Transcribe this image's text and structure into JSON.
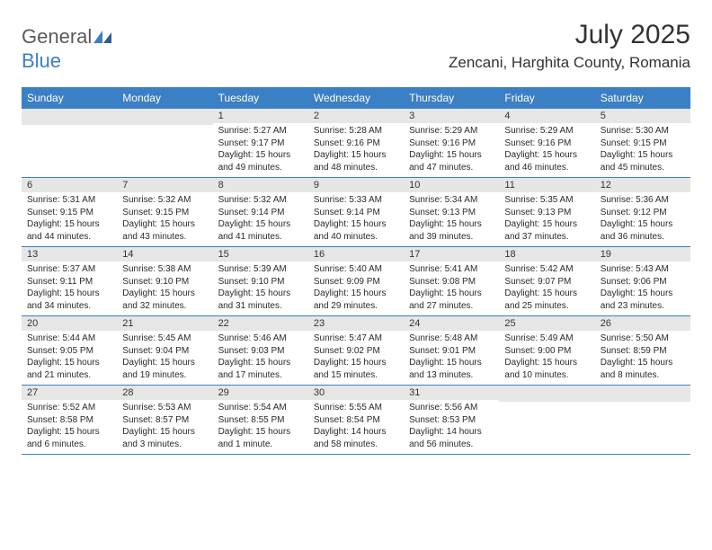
{
  "logo": {
    "general": "General",
    "blue": "Blue"
  },
  "title": "July 2025",
  "location": "Zencani, Harghita County, Romania",
  "day_headers": [
    "Sunday",
    "Monday",
    "Tuesday",
    "Wednesday",
    "Thursday",
    "Friday",
    "Saturday"
  ],
  "colors": {
    "header_bg": "#3b7fc4",
    "header_text": "#ffffff",
    "num_bar_bg": "#e6e6e6",
    "border": "#3b7fc4",
    "body_text": "#2a2a2a"
  },
  "weeks": [
    [
      {
        "num": "",
        "sunrise": "",
        "sunset": "",
        "daylight": ""
      },
      {
        "num": "",
        "sunrise": "",
        "sunset": "",
        "daylight": ""
      },
      {
        "num": "1",
        "sunrise": "Sunrise: 5:27 AM",
        "sunset": "Sunset: 9:17 PM",
        "daylight": "Daylight: 15 hours and 49 minutes."
      },
      {
        "num": "2",
        "sunrise": "Sunrise: 5:28 AM",
        "sunset": "Sunset: 9:16 PM",
        "daylight": "Daylight: 15 hours and 48 minutes."
      },
      {
        "num": "3",
        "sunrise": "Sunrise: 5:29 AM",
        "sunset": "Sunset: 9:16 PM",
        "daylight": "Daylight: 15 hours and 47 minutes."
      },
      {
        "num": "4",
        "sunrise": "Sunrise: 5:29 AM",
        "sunset": "Sunset: 9:16 PM",
        "daylight": "Daylight: 15 hours and 46 minutes."
      },
      {
        "num": "5",
        "sunrise": "Sunrise: 5:30 AM",
        "sunset": "Sunset: 9:15 PM",
        "daylight": "Daylight: 15 hours and 45 minutes."
      }
    ],
    [
      {
        "num": "6",
        "sunrise": "Sunrise: 5:31 AM",
        "sunset": "Sunset: 9:15 PM",
        "daylight": "Daylight: 15 hours and 44 minutes."
      },
      {
        "num": "7",
        "sunrise": "Sunrise: 5:32 AM",
        "sunset": "Sunset: 9:15 PM",
        "daylight": "Daylight: 15 hours and 43 minutes."
      },
      {
        "num": "8",
        "sunrise": "Sunrise: 5:32 AM",
        "sunset": "Sunset: 9:14 PM",
        "daylight": "Daylight: 15 hours and 41 minutes."
      },
      {
        "num": "9",
        "sunrise": "Sunrise: 5:33 AM",
        "sunset": "Sunset: 9:14 PM",
        "daylight": "Daylight: 15 hours and 40 minutes."
      },
      {
        "num": "10",
        "sunrise": "Sunrise: 5:34 AM",
        "sunset": "Sunset: 9:13 PM",
        "daylight": "Daylight: 15 hours and 39 minutes."
      },
      {
        "num": "11",
        "sunrise": "Sunrise: 5:35 AM",
        "sunset": "Sunset: 9:13 PM",
        "daylight": "Daylight: 15 hours and 37 minutes."
      },
      {
        "num": "12",
        "sunrise": "Sunrise: 5:36 AM",
        "sunset": "Sunset: 9:12 PM",
        "daylight": "Daylight: 15 hours and 36 minutes."
      }
    ],
    [
      {
        "num": "13",
        "sunrise": "Sunrise: 5:37 AM",
        "sunset": "Sunset: 9:11 PM",
        "daylight": "Daylight: 15 hours and 34 minutes."
      },
      {
        "num": "14",
        "sunrise": "Sunrise: 5:38 AM",
        "sunset": "Sunset: 9:10 PM",
        "daylight": "Daylight: 15 hours and 32 minutes."
      },
      {
        "num": "15",
        "sunrise": "Sunrise: 5:39 AM",
        "sunset": "Sunset: 9:10 PM",
        "daylight": "Daylight: 15 hours and 31 minutes."
      },
      {
        "num": "16",
        "sunrise": "Sunrise: 5:40 AM",
        "sunset": "Sunset: 9:09 PM",
        "daylight": "Daylight: 15 hours and 29 minutes."
      },
      {
        "num": "17",
        "sunrise": "Sunrise: 5:41 AM",
        "sunset": "Sunset: 9:08 PM",
        "daylight": "Daylight: 15 hours and 27 minutes."
      },
      {
        "num": "18",
        "sunrise": "Sunrise: 5:42 AM",
        "sunset": "Sunset: 9:07 PM",
        "daylight": "Daylight: 15 hours and 25 minutes."
      },
      {
        "num": "19",
        "sunrise": "Sunrise: 5:43 AM",
        "sunset": "Sunset: 9:06 PM",
        "daylight": "Daylight: 15 hours and 23 minutes."
      }
    ],
    [
      {
        "num": "20",
        "sunrise": "Sunrise: 5:44 AM",
        "sunset": "Sunset: 9:05 PM",
        "daylight": "Daylight: 15 hours and 21 minutes."
      },
      {
        "num": "21",
        "sunrise": "Sunrise: 5:45 AM",
        "sunset": "Sunset: 9:04 PM",
        "daylight": "Daylight: 15 hours and 19 minutes."
      },
      {
        "num": "22",
        "sunrise": "Sunrise: 5:46 AM",
        "sunset": "Sunset: 9:03 PM",
        "daylight": "Daylight: 15 hours and 17 minutes."
      },
      {
        "num": "23",
        "sunrise": "Sunrise: 5:47 AM",
        "sunset": "Sunset: 9:02 PM",
        "daylight": "Daylight: 15 hours and 15 minutes."
      },
      {
        "num": "24",
        "sunrise": "Sunrise: 5:48 AM",
        "sunset": "Sunset: 9:01 PM",
        "daylight": "Daylight: 15 hours and 13 minutes."
      },
      {
        "num": "25",
        "sunrise": "Sunrise: 5:49 AM",
        "sunset": "Sunset: 9:00 PM",
        "daylight": "Daylight: 15 hours and 10 minutes."
      },
      {
        "num": "26",
        "sunrise": "Sunrise: 5:50 AM",
        "sunset": "Sunset: 8:59 PM",
        "daylight": "Daylight: 15 hours and 8 minutes."
      }
    ],
    [
      {
        "num": "27",
        "sunrise": "Sunrise: 5:52 AM",
        "sunset": "Sunset: 8:58 PM",
        "daylight": "Daylight: 15 hours and 6 minutes."
      },
      {
        "num": "28",
        "sunrise": "Sunrise: 5:53 AM",
        "sunset": "Sunset: 8:57 PM",
        "daylight": "Daylight: 15 hours and 3 minutes."
      },
      {
        "num": "29",
        "sunrise": "Sunrise: 5:54 AM",
        "sunset": "Sunset: 8:55 PM",
        "daylight": "Daylight: 15 hours and 1 minute."
      },
      {
        "num": "30",
        "sunrise": "Sunrise: 5:55 AM",
        "sunset": "Sunset: 8:54 PM",
        "daylight": "Daylight: 14 hours and 58 minutes."
      },
      {
        "num": "31",
        "sunrise": "Sunrise: 5:56 AM",
        "sunset": "Sunset: 8:53 PM",
        "daylight": "Daylight: 14 hours and 56 minutes."
      },
      {
        "num": "",
        "sunrise": "",
        "sunset": "",
        "daylight": ""
      },
      {
        "num": "",
        "sunrise": "",
        "sunset": "",
        "daylight": ""
      }
    ]
  ]
}
